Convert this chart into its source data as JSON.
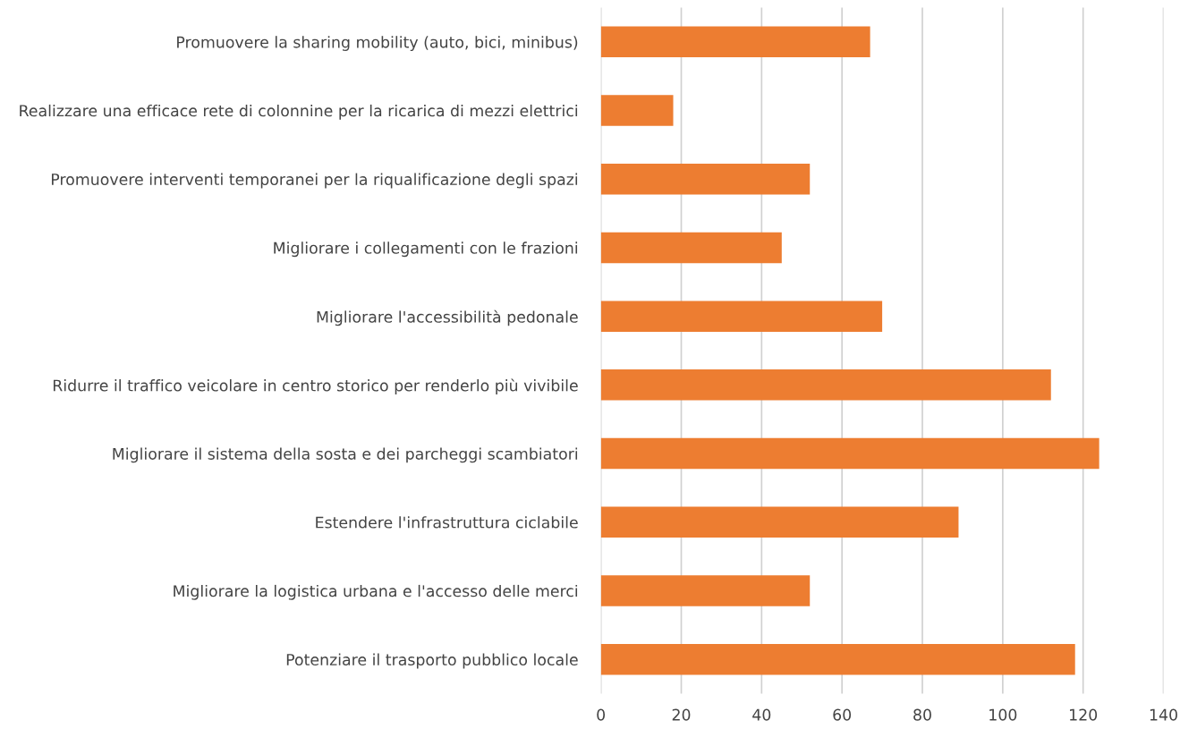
{
  "chart_data": {
    "type": "bar",
    "orientation": "horizontal",
    "categories": [
      "Promuovere la sharing mobility (auto, bici, minibus)",
      "Realizzare una efficace rete di colonnine per la ricarica di mezzi elettrici",
      "Promuovere interventi temporanei per la riqualificazione degli spazi",
      "Migliorare i collegamenti con le frazioni",
      "Migliorare l'accessibilità pedonale",
      "Ridurre il traffico veicolare in centro storico per renderlo più vivibile",
      "Migliorare il sistema della sosta e dei parcheggi scambiatori",
      "Estendere l'infrastruttura ciclabile",
      "Migliorare la logistica urbana e l'accesso delle merci",
      "Potenziare il trasporto pubblico locale"
    ],
    "values": [
      67,
      18,
      52,
      45,
      70,
      112,
      124,
      89,
      52,
      118
    ],
    "color": "#ed7d31",
    "xlim": [
      0,
      140
    ],
    "xticks": [
      0,
      20,
      40,
      60,
      80,
      100,
      120,
      140
    ],
    "grid": "x"
  }
}
